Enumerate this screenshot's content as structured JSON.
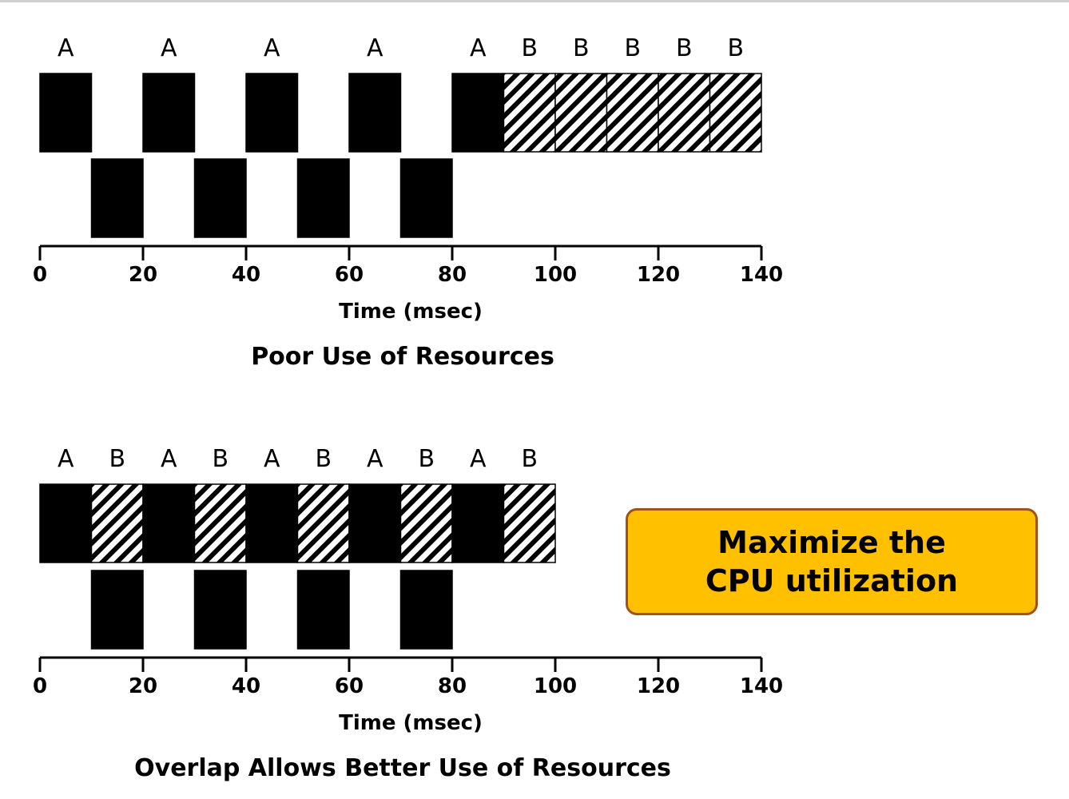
{
  "panels": [
    {
      "id": "poor",
      "caption": "Poor Use of Resources",
      "axis_title": "Time (msec)",
      "ticks": [
        "0",
        "20",
        "40",
        "60",
        "80",
        "100",
        "120",
        "140"
      ],
      "cpu_bursts": [
        {
          "proc": "A",
          "start": 0,
          "end": 10,
          "fill": "solid"
        },
        {
          "proc": "A",
          "start": 20,
          "end": 30,
          "fill": "solid"
        },
        {
          "proc": "A",
          "start": 40,
          "end": 50,
          "fill": "solid"
        },
        {
          "proc": "A",
          "start": 60,
          "end": 70,
          "fill": "solid"
        },
        {
          "proc": "A",
          "start": 80,
          "end": 90,
          "fill": "solid"
        },
        {
          "proc": "B",
          "start": 90,
          "end": 100,
          "fill": "hatch"
        },
        {
          "proc": "B",
          "start": 100,
          "end": 110,
          "fill": "hatch"
        },
        {
          "proc": "B",
          "start": 110,
          "end": 120,
          "fill": "hatch"
        },
        {
          "proc": "B",
          "start": 120,
          "end": 130,
          "fill": "hatch"
        },
        {
          "proc": "B",
          "start": 130,
          "end": 140,
          "fill": "hatch"
        }
      ],
      "io_bursts": [
        {
          "start": 10,
          "end": 20
        },
        {
          "start": 30,
          "end": 40
        },
        {
          "start": 50,
          "end": 60
        },
        {
          "start": 70,
          "end": 80
        }
      ]
    },
    {
      "id": "overlap",
      "caption": "Overlap Allows Better Use of Resources",
      "axis_title": "Time (msec)",
      "ticks": [
        "0",
        "20",
        "40",
        "60",
        "80",
        "100",
        "120",
        "140"
      ],
      "cpu_bursts": [
        {
          "proc": "A",
          "start": 0,
          "end": 10,
          "fill": "solid"
        },
        {
          "proc": "B",
          "start": 10,
          "end": 20,
          "fill": "hatch"
        },
        {
          "proc": "A",
          "start": 20,
          "end": 30,
          "fill": "solid"
        },
        {
          "proc": "B",
          "start": 30,
          "end": 40,
          "fill": "hatch"
        },
        {
          "proc": "A",
          "start": 40,
          "end": 50,
          "fill": "solid"
        },
        {
          "proc": "B",
          "start": 50,
          "end": 60,
          "fill": "hatch"
        },
        {
          "proc": "A",
          "start": 60,
          "end": 70,
          "fill": "solid"
        },
        {
          "proc": "B",
          "start": 70,
          "end": 80,
          "fill": "hatch"
        },
        {
          "proc": "A",
          "start": 80,
          "end": 90,
          "fill": "solid"
        },
        {
          "proc": "B",
          "start": 90,
          "end": 100,
          "fill": "hatch"
        }
      ],
      "io_bursts": [
        {
          "start": 10,
          "end": 20
        },
        {
          "start": 30,
          "end": 40
        },
        {
          "start": 50,
          "end": 60
        },
        {
          "start": 70,
          "end": 80
        }
      ]
    }
  ],
  "callout": {
    "line1": "Maximize the",
    "line2": "CPU utilization",
    "background": "#ffc000",
    "border": "#a0521c"
  },
  "colors": {
    "solid": "#000000",
    "hatch_stripe": "#000000",
    "hatch_bg": "#ffffff"
  }
}
